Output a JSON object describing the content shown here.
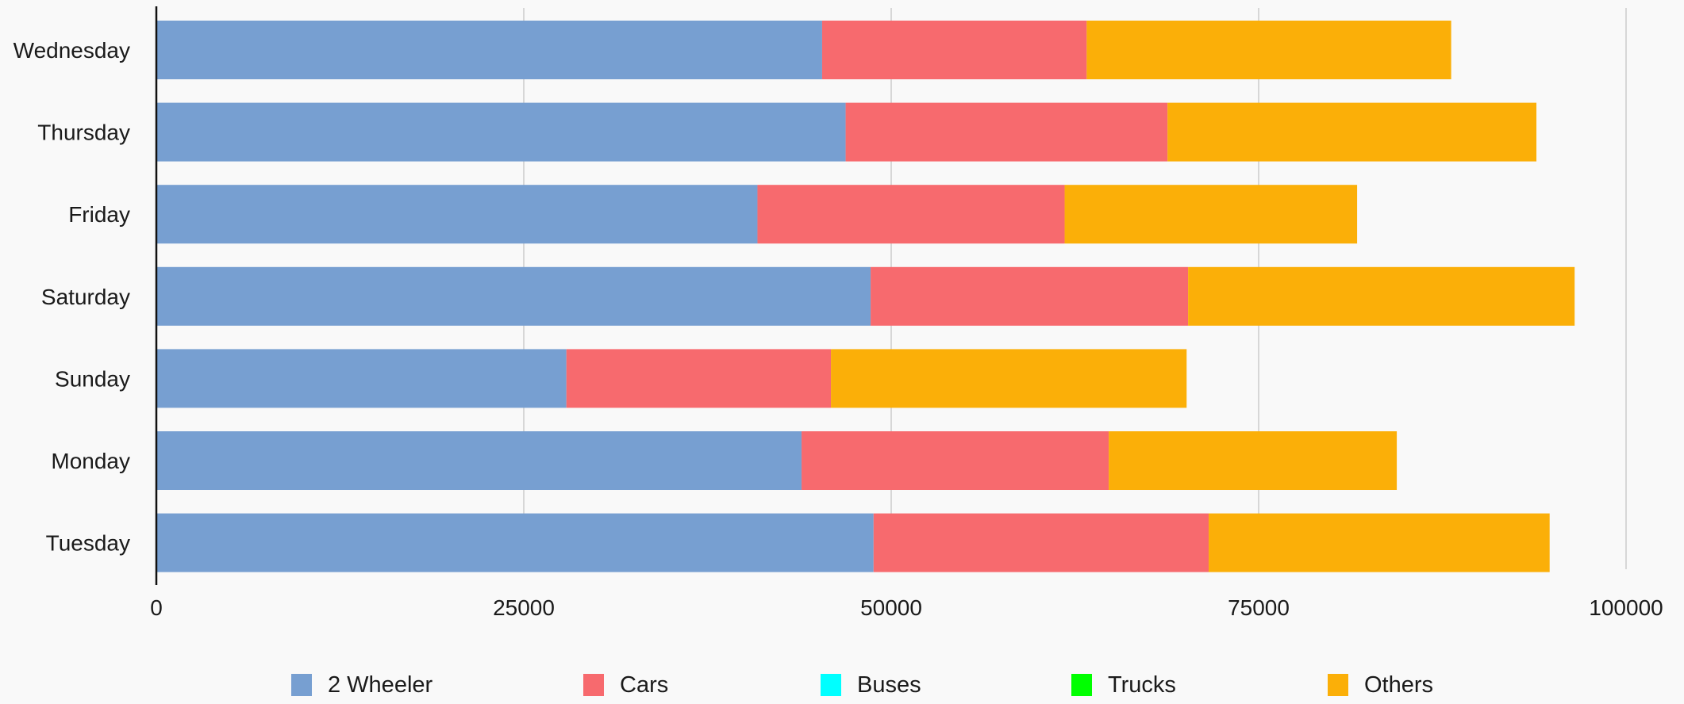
{
  "chart_data": {
    "type": "bar",
    "orientation": "horizontal",
    "stacked": true,
    "categories": [
      "Wednesday",
      "Thursday",
      "Friday",
      "Saturday",
      "Sunday",
      "Monday",
      "Tuesday"
    ],
    "series": [
      {
        "name": "2 Wheeler",
        "color": "#779fd1",
        "values": [
          45300,
          46900,
          40900,
          48600,
          27900,
          43900,
          48800
        ]
      },
      {
        "name": "Cars",
        "color": "#f76a6e",
        "values": [
          18000,
          21900,
          20900,
          21600,
          18000,
          20900,
          22800
        ]
      },
      {
        "name": "Buses",
        "color": "#00ffff",
        "values": [
          0,
          0,
          0,
          0,
          0,
          0,
          0
        ]
      },
      {
        "name": "Trucks",
        "color": "#00ff00",
        "values": [
          0,
          0,
          0,
          0,
          0,
          0,
          0
        ]
      },
      {
        "name": "Others",
        "color": "#fbaf08",
        "values": [
          24800,
          25100,
          19900,
          26300,
          24200,
          19600,
          23200
        ]
      }
    ],
    "xlim": [
      0,
      100000
    ],
    "xticks": [
      "0",
      "25000",
      "50000",
      "75000",
      "100000"
    ],
    "grid": true,
    "legend_position": "bottom"
  }
}
